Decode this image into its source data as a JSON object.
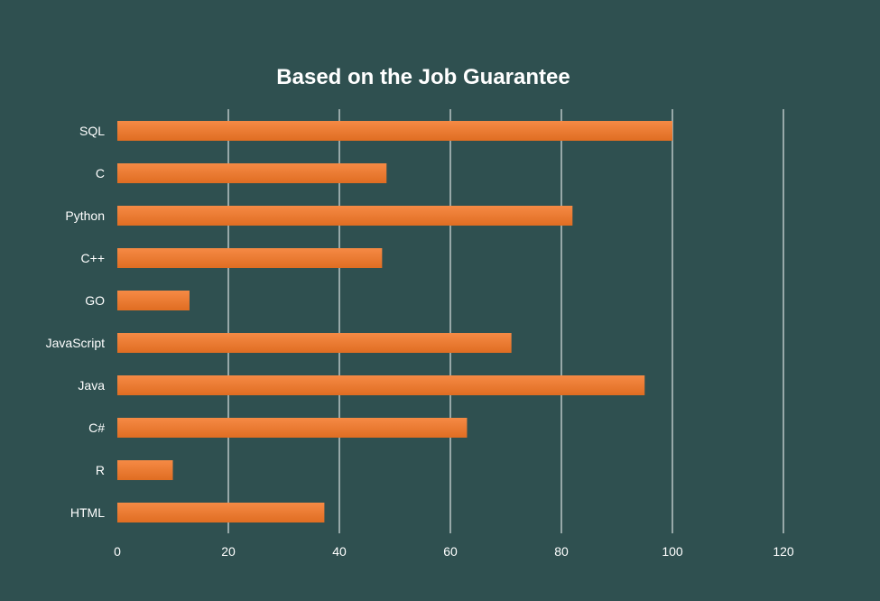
{
  "chart_data": {
    "type": "bar",
    "orientation": "horizontal",
    "title": "Based on the Job Guarantee",
    "xlabel": "",
    "ylabel": "",
    "categories": [
      "SQL",
      "C",
      "Python",
      "C++",
      "GO",
      "JavaScript",
      "Java",
      "C#",
      "R",
      "HTML"
    ],
    "values": [
      100,
      48.5,
      82,
      47.7,
      13,
      71,
      95,
      63,
      10,
      37.3
    ],
    "xlim": [
      0,
      120
    ],
    "xticks": [
      0,
      20,
      40,
      60,
      80,
      100,
      120
    ],
    "grid": "vertical",
    "legend": "none"
  },
  "colors": {
    "background": "#2f5050",
    "bar_top": "#f68a45",
    "bar_bottom": "#e06d22",
    "grid": "#ffffff",
    "text": "#ffffff"
  }
}
